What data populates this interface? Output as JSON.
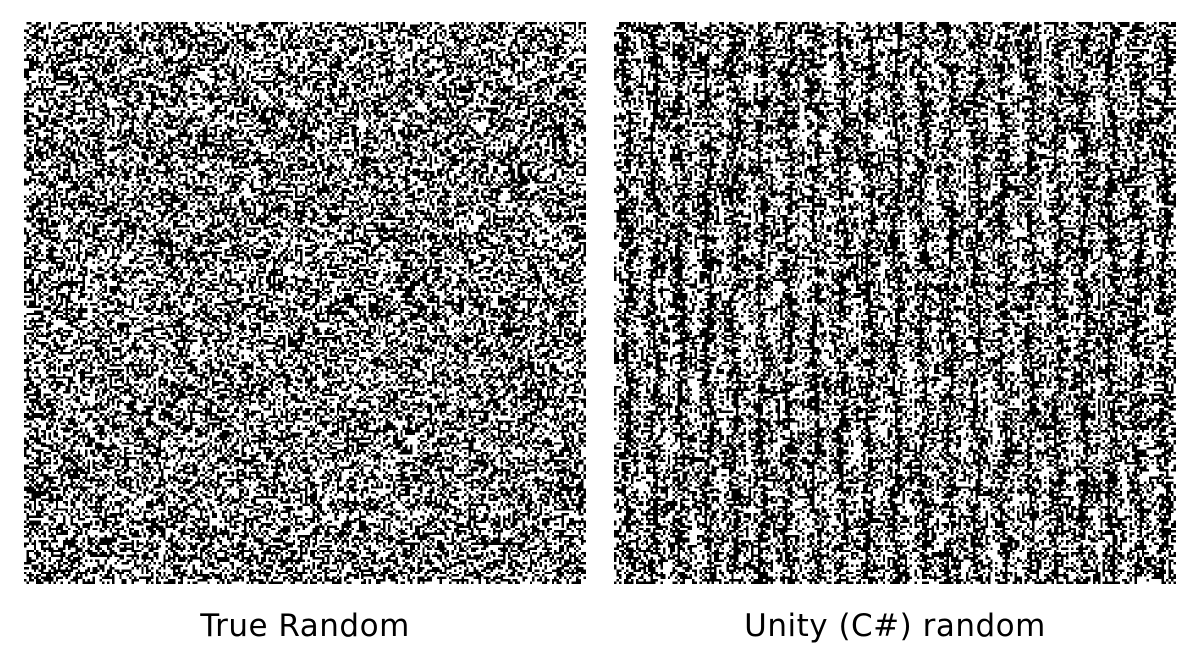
{
  "colors": {
    "background": "#ffffff",
    "pixel_on": "#000000",
    "pixel_off": "#ffffff"
  },
  "panels": [
    {
      "caption": "True Random",
      "pattern": "uniform-random-noise",
      "fill_fraction": 0.5
    },
    {
      "caption": "Unity (C#) random",
      "pattern": "random-noise-with-vertical-streaks",
      "fill_fraction": 0.5
    }
  ]
}
